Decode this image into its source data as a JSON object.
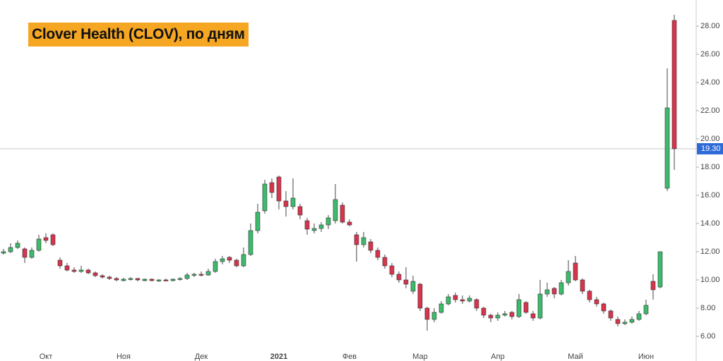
{
  "chart_data": {
    "type": "candlestick",
    "title": "Clover Health (CLOV), по дням",
    "categories": [
      null,
      null,
      null,
      null,
      null,
      null,
      "Окт",
      null,
      null,
      null,
      null,
      null,
      null,
      null,
      null,
      null,
      null,
      "Ноя",
      null,
      null,
      null,
      null,
      null,
      null,
      null,
      null,
      null,
      null,
      "Дек",
      null,
      null,
      null,
      null,
      null,
      null,
      null,
      null,
      null,
      null,
      "2021",
      null,
      null,
      null,
      null,
      null,
      null,
      null,
      null,
      null,
      "Фев",
      null,
      null,
      null,
      null,
      null,
      null,
      null,
      null,
      null,
      "Мар",
      null,
      null,
      null,
      null,
      null,
      null,
      null,
      null,
      null,
      null,
      "Апр",
      null,
      null,
      null,
      null,
      null,
      null,
      null,
      null,
      null,
      null,
      "Май",
      null,
      null,
      null,
      null,
      null,
      null,
      null,
      null,
      null,
      "Июн",
      null,
      null,
      null,
      null
    ],
    "ohlc": [
      [
        11.9,
        12.2,
        11.8,
        12.0
      ],
      [
        12.0,
        12.6,
        11.9,
        12.3
      ],
      [
        12.3,
        12.8,
        12.2,
        12.6
      ],
      [
        12.2,
        12.3,
        11.2,
        11.6
      ],
      [
        11.6,
        12.3,
        11.5,
        12.1
      ],
      [
        12.1,
        13.2,
        12.0,
        12.9
      ],
      [
        13.0,
        13.3,
        12.6,
        12.8
      ],
      [
        13.2,
        13.3,
        12.4,
        12.5
      ],
      [
        11.4,
        11.6,
        10.8,
        11.0
      ],
      [
        11.0,
        11.2,
        10.6,
        10.7
      ],
      [
        10.7,
        10.9,
        10.5,
        10.6
      ],
      [
        10.6,
        11.0,
        10.5,
        10.7
      ],
      [
        10.7,
        10.8,
        10.4,
        10.5
      ],
      [
        10.5,
        10.6,
        10.2,
        10.3
      ],
      [
        10.3,
        10.4,
        10.1,
        10.2
      ],
      [
        10.2,
        10.3,
        10.0,
        10.1
      ],
      [
        10.1,
        10.2,
        9.9,
        10.0
      ],
      [
        9.95,
        10.15,
        9.9,
        10.05
      ],
      [
        10.05,
        10.2,
        9.95,
        10.1
      ],
      [
        10.1,
        10.15,
        9.9,
        10.0
      ],
      [
        9.95,
        10.1,
        9.9,
        10.05
      ],
      [
        10.05,
        10.1,
        9.9,
        9.95
      ],
      [
        9.95,
        10.05,
        9.85,
        10.0
      ],
      [
        10.0,
        10.1,
        9.9,
        9.95
      ],
      [
        9.95,
        10.1,
        9.9,
        10.05
      ],
      [
        10.05,
        10.2,
        9.95,
        10.1
      ],
      [
        10.1,
        10.5,
        10.0,
        10.35
      ],
      [
        10.35,
        10.5,
        10.2,
        10.4
      ],
      [
        10.4,
        10.6,
        10.25,
        10.35
      ],
      [
        10.35,
        10.8,
        10.3,
        10.6
      ],
      [
        10.6,
        11.5,
        10.5,
        11.3
      ],
      [
        11.3,
        11.7,
        11.1,
        11.5
      ],
      [
        11.6,
        11.7,
        11.2,
        11.4
      ],
      [
        11.4,
        11.5,
        10.9,
        11.0
      ],
      [
        11.0,
        12.3,
        10.9,
        11.8
      ],
      [
        11.8,
        14.0,
        11.7,
        13.5
      ],
      [
        13.5,
        15.4,
        13.3,
        14.8
      ],
      [
        14.9,
        17.1,
        14.7,
        16.8
      ],
      [
        16.9,
        17.2,
        15.8,
        16.2
      ],
      [
        17.3,
        17.4,
        15.0,
        15.6
      ],
      [
        15.6,
        16.3,
        14.5,
        15.2
      ],
      [
        15.2,
        17.2,
        15.0,
        15.8
      ],
      [
        15.2,
        15.4,
        14.3,
        14.6
      ],
      [
        14.2,
        14.4,
        13.2,
        13.6
      ],
      [
        13.5,
        14.0,
        13.3,
        13.65
      ],
      [
        13.65,
        14.1,
        13.4,
        13.9
      ],
      [
        13.9,
        14.6,
        13.6,
        14.4
      ],
      [
        14.2,
        16.8,
        14.0,
        15.7
      ],
      [
        15.3,
        15.5,
        14.0,
        14.1
      ],
      [
        14.1,
        14.3,
        13.8,
        13.9
      ],
      [
        13.2,
        13.4,
        11.3,
        12.5
      ],
      [
        12.5,
        13.4,
        12.3,
        13.0
      ],
      [
        12.7,
        12.9,
        11.9,
        12.1
      ],
      [
        12.1,
        12.3,
        11.4,
        11.6
      ],
      [
        11.6,
        11.8,
        10.8,
        11.0
      ],
      [
        11.0,
        11.2,
        10.2,
        10.4
      ],
      [
        10.4,
        10.6,
        9.8,
        10.0
      ],
      [
        10.0,
        10.9,
        9.4,
        9.7
      ],
      [
        9.2,
        10.3,
        9.0,
        9.9
      ],
      [
        9.7,
        9.8,
        7.8,
        8.0
      ],
      [
        8.0,
        8.1,
        6.4,
        7.2
      ],
      [
        7.2,
        8.0,
        7.0,
        7.7
      ],
      [
        7.7,
        8.5,
        7.6,
        8.3
      ],
      [
        8.3,
        9.0,
        8.2,
        8.8
      ],
      [
        8.9,
        9.1,
        8.4,
        8.6
      ],
      [
        8.6,
        8.9,
        8.3,
        8.5
      ],
      [
        8.5,
        8.9,
        8.4,
        8.7
      ],
      [
        8.6,
        8.7,
        7.8,
        8.0
      ],
      [
        8.0,
        8.1,
        7.3,
        7.5
      ],
      [
        7.5,
        7.6,
        7.0,
        7.3
      ],
      [
        7.3,
        7.7,
        7.1,
        7.5
      ],
      [
        7.5,
        7.8,
        7.4,
        7.6
      ],
      [
        7.7,
        7.8,
        7.2,
        7.4
      ],
      [
        7.4,
        9.0,
        7.3,
        8.6
      ],
      [
        8.4,
        8.5,
        7.6,
        7.7
      ],
      [
        7.6,
        7.8,
        7.1,
        7.3
      ],
      [
        7.3,
        10.0,
        7.2,
        9.0
      ],
      [
        9.0,
        9.8,
        8.8,
        9.3
      ],
      [
        9.4,
        9.5,
        8.7,
        9.0
      ],
      [
        9.0,
        10.0,
        8.9,
        9.8
      ],
      [
        9.8,
        11.4,
        9.6,
        10.6
      ],
      [
        11.2,
        11.7,
        9.9,
        10.0
      ],
      [
        10.0,
        10.1,
        9.0,
        9.2
      ],
      [
        9.2,
        9.3,
        8.4,
        8.6
      ],
      [
        8.6,
        8.8,
        8.1,
        8.3
      ],
      [
        8.3,
        8.4,
        7.6,
        7.8
      ],
      [
        7.8,
        7.9,
        7.1,
        7.3
      ],
      [
        7.2,
        7.4,
        6.7,
        6.9
      ],
      [
        6.9,
        7.2,
        6.8,
        7.0
      ],
      [
        7.0,
        7.4,
        6.9,
        7.2
      ],
      [
        7.2,
        7.8,
        7.1,
        7.6
      ],
      [
        7.6,
        8.6,
        7.5,
        8.2
      ],
      [
        9.9,
        10.4,
        8.6,
        9.3
      ],
      [
        9.5,
        12.0,
        9.4,
        12.0
      ],
      [
        16.5,
        25.0,
        16.3,
        22.2
      ],
      [
        28.4,
        28.8,
        17.8,
        19.3
      ]
    ],
    "up_color": "#3dbb6c",
    "down_color": "#d8344d",
    "ylim": [
      4.25,
      29.85
    ],
    "yticks": [
      {
        "value": 6,
        "label": "6.00"
      },
      {
        "value": 8,
        "label": "8.00"
      },
      {
        "value": 10,
        "label": "10.00"
      },
      {
        "value": 12,
        "label": "12.00"
      },
      {
        "value": 14,
        "label": "14.00"
      },
      {
        "value": 16,
        "label": "16.00"
      },
      {
        "value": 18,
        "label": "18.00"
      },
      {
        "value": 20,
        "label": "20.00"
      },
      {
        "value": 22,
        "label": "22.00"
      },
      {
        "value": 24,
        "label": "24.00"
      },
      {
        "value": 26,
        "label": "26.00"
      },
      {
        "value": 28,
        "label": "28.00"
      }
    ],
    "last_price": {
      "value": 19.3,
      "label": "19.30"
    }
  }
}
